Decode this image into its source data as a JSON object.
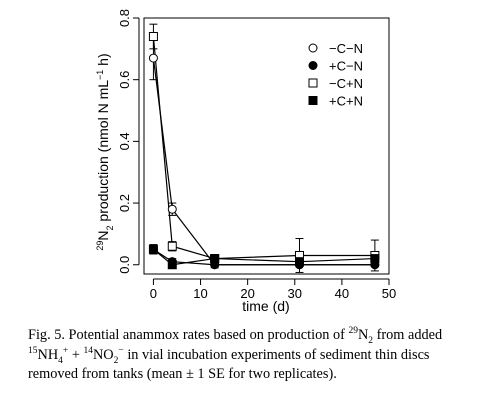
{
  "chart_data": {
    "type": "line",
    "xlabel": "time (d)",
    "ylabel_prefix": "29",
    "ylabel_mid": "N",
    "ylabel_sub": "2",
    "ylabel_main": " production (nmol N mL",
    "ylabel_exp": "−1",
    "ylabel_h": " h",
    "ylabel_end": ")",
    "xlim": [
      -2,
      50
    ],
    "ylim": [
      -0.03,
      0.8
    ],
    "xticks": [
      0,
      10,
      20,
      30,
      40,
      50
    ],
    "yticks": [
      0.0,
      0.2,
      0.4,
      0.6,
      0.8
    ],
    "ytick_labels": [
      "0.0",
      "0.2",
      "0.4",
      "0.6",
      "0.8"
    ],
    "grid": false,
    "legend_position": "top-right",
    "series": [
      {
        "name": "−C−N",
        "marker": "circle-open",
        "x": [
          0,
          4,
          13,
          31,
          47
        ],
        "y": [
          0.67,
          0.18,
          0.0,
          0.0,
          0.0
        ],
        "err": [
          0.07,
          0.02,
          0.01,
          0.005,
          0.005
        ]
      },
      {
        "name": "+C−N",
        "marker": "circle-filled",
        "x": [
          0,
          4,
          13,
          31,
          47
        ],
        "y": [
          0.05,
          0.01,
          0.0,
          0.0,
          0.0
        ],
        "err": [
          0.015,
          0.01,
          0.005,
          0.005,
          0.005
        ]
      },
      {
        "name": "−C+N",
        "marker": "square-open",
        "x": [
          0,
          4,
          13,
          31,
          47
        ],
        "y": [
          0.74,
          0.06,
          0.02,
          0.03,
          0.03
        ],
        "err": [
          0.04,
          0.015,
          0.01,
          0.055,
          0.05
        ]
      },
      {
        "name": "+C+N",
        "marker": "square-filled",
        "x": [
          0,
          4,
          13,
          31,
          47
        ],
        "y": [
          0.05,
          0.0,
          0.02,
          0.01,
          0.02
        ],
        "err": [
          0.015,
          0.005,
          0.01,
          0.01,
          0.015
        ]
      }
    ]
  },
  "caption": {
    "lead": "Fig. 5.",
    "t1": " Potential anammox rates based on production of ",
    "n29": "29",
    "n": "N",
    "sub2": "2",
    "t2": " from added ",
    "sup15": "15",
    "nh": "NH",
    "sub4": "4",
    "sup_plus": "+",
    "plus": " + ",
    "sup14": "14",
    "no": "NO",
    "subno2": "2",
    "sup_minus": "−",
    "t3": " in vial incubation experiments of sediment thin discs removed from tanks (mean ± 1 SE for two replicates)."
  }
}
